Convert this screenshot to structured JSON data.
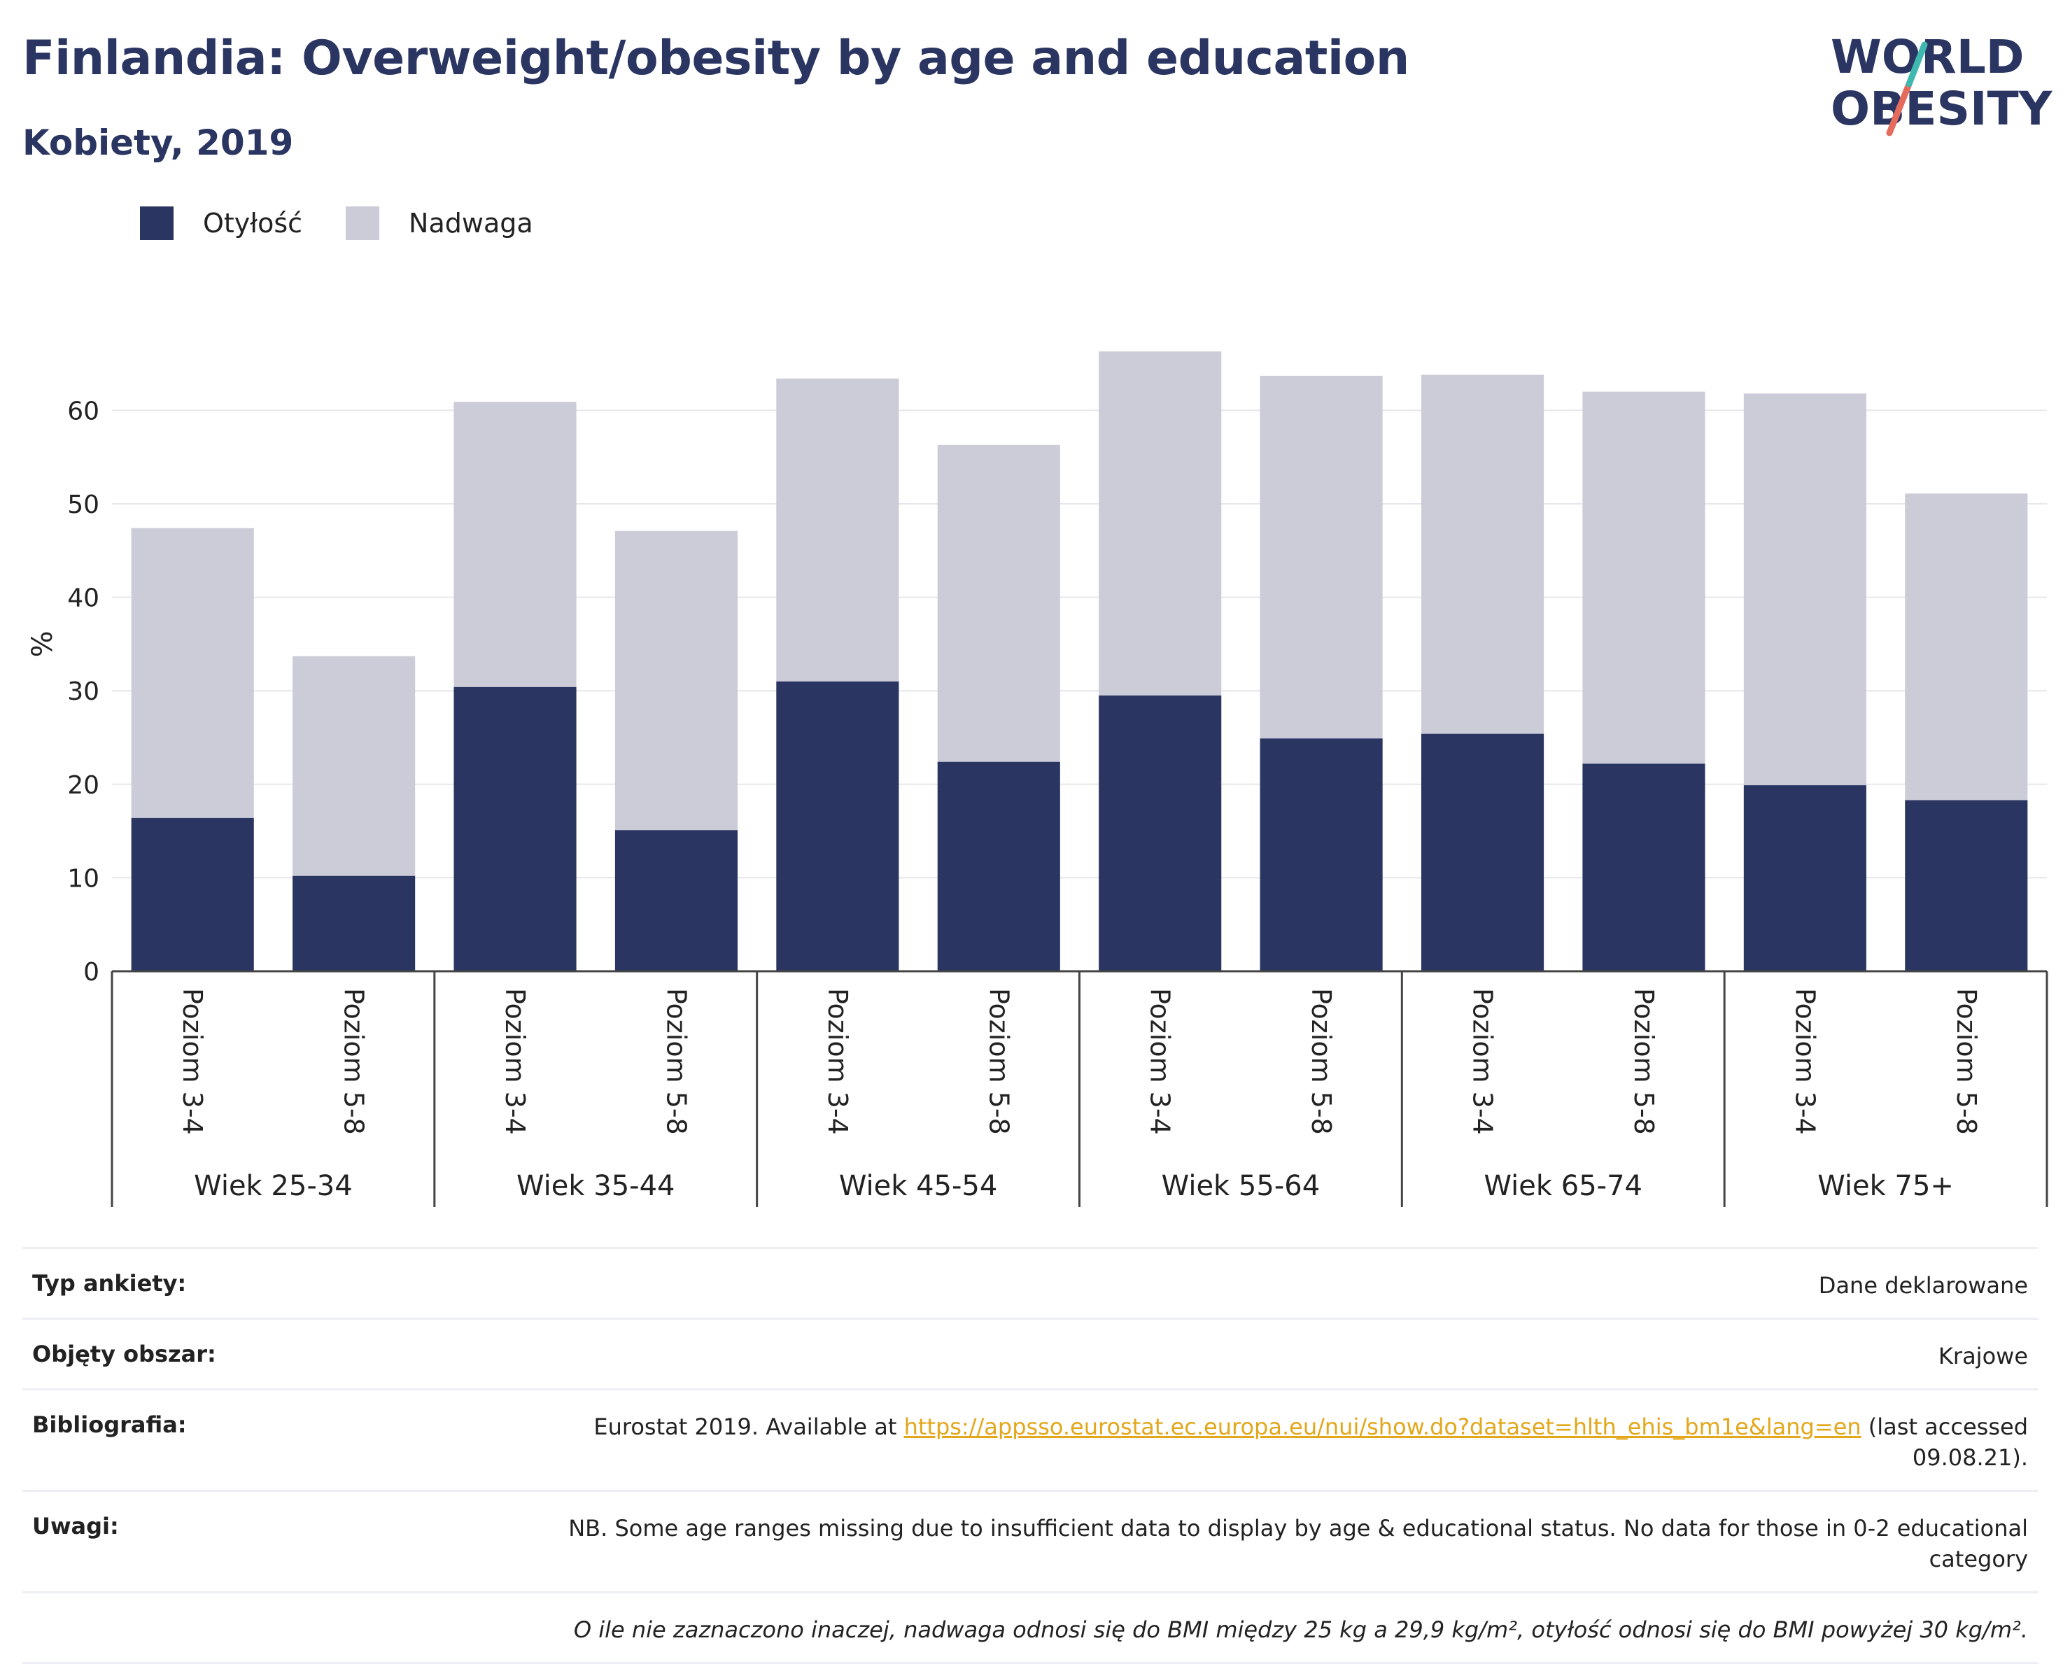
{
  "header": {
    "title": "Finlandia: Overweight/obesity by age and education",
    "subtitle": "Kobiety, 2019"
  },
  "logo": {
    "line1": "WORLD",
    "line2": "OBESITY"
  },
  "legend": [
    {
      "label": "Otyłość",
      "color": "#2a3561"
    },
    {
      "label": "Nadwaga",
      "color": "#cbccd7"
    }
  ],
  "chart_data": {
    "type": "bar",
    "stacked": true,
    "ylabel": "%",
    "ylim": [
      0,
      70
    ],
    "yticks": [
      0,
      10,
      20,
      30,
      40,
      50,
      60
    ],
    "grid": true,
    "legend_position": "top-left",
    "groups": [
      "Wiek 25-34",
      "Wiek 35-44",
      "Wiek 45-54",
      "Wiek 55-64",
      "Wiek 65-74",
      "Wiek 75+"
    ],
    "categories": [
      "Poziom 3-4",
      "Poziom 5-8",
      "Poziom 3-4",
      "Poziom 5-8",
      "Poziom 3-4",
      "Poziom 5-8",
      "Poziom 3-4",
      "Poziom 5-8",
      "Poziom 3-4",
      "Poziom 5-8",
      "Poziom 3-4",
      "Poziom 5-8"
    ],
    "series": [
      {
        "name": "Otyłość",
        "color": "#2a3561",
        "values": [
          16.4,
          10.2,
          30.4,
          15.1,
          31.0,
          22.4,
          29.5,
          24.9,
          25.4,
          22.2,
          19.9,
          18.3
        ]
      },
      {
        "name": "Nadwaga",
        "color": "#cbccd7",
        "values": [
          31.0,
          23.5,
          30.5,
          32.0,
          32.4,
          33.9,
          36.8,
          38.8,
          38.4,
          39.8,
          41.9,
          32.8
        ]
      }
    ]
  },
  "meta": [
    {
      "key": "Typ ankiety:",
      "value": "Dane deklarowane"
    },
    {
      "key": "Objęty obszar:",
      "value": "Krajowe"
    },
    {
      "key": "Bibliografia:",
      "pre": "Eurostat 2019. Available at ",
      "link": "https://appsso.eurostat.ec.europa.eu/nui/show.do?dataset=hlth_ehis_bm1e&lang=en",
      "post": " (last accessed 09.08.21)."
    },
    {
      "key": "Uwagi:",
      "value": "NB. Some age ranges missing due to insufficient data to display by age & educational status. No data for those in 0-2 educational category"
    },
    {
      "key": "",
      "value": "O ile nie zaznaczono inaczej, nadwaga odnosi się do BMI między 25 kg a 29,9 kg/m², otyłość odnosi się do BMI powyżej 30 kg/m²."
    }
  ]
}
